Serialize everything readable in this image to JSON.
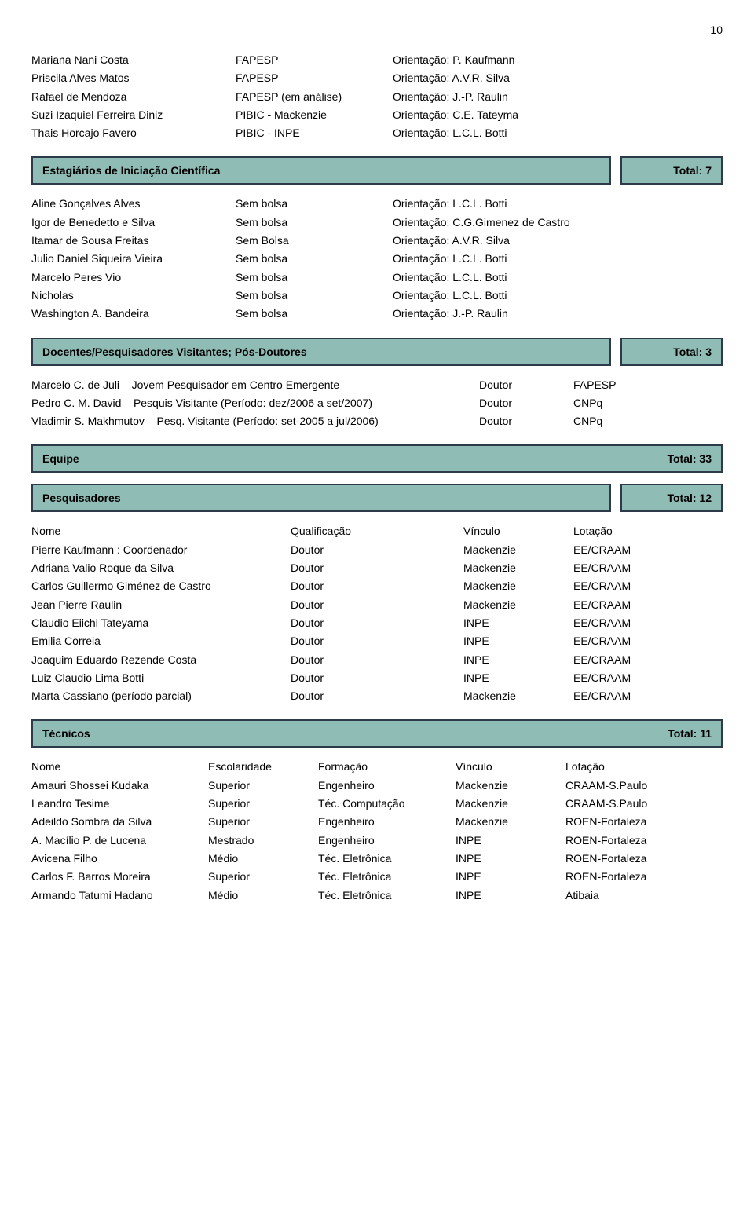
{
  "page_number": "10",
  "colors": {
    "banner_bg": "#8fbcb4",
    "banner_border": "#2d3a4a"
  },
  "section1_rows": [
    [
      "Mariana Nani Costa",
      "FAPESP",
      "Orientação:  P. Kaufmann"
    ],
    [
      "Priscila Alves Matos",
      "FAPESP",
      "Orientação: A.V.R. Silva"
    ],
    [
      "Rafael de Mendoza",
      "FAPESP (em análise)",
      "Orientação:  J.-P. Raulin"
    ],
    [
      "Suzi Izaquiel Ferreira Diniz",
      "PIBIC - Mackenzie",
      "Orientação: C.E. Tateyma"
    ],
    [
      "Thais Horcajo Favero",
      "PIBIC - INPE",
      "Orientação: L.C.L. Botti"
    ]
  ],
  "banner_estagiarios": {
    "title": "Estagiários de Iniciação Científica",
    "total": "Total: 7"
  },
  "estagiarios_rows": [
    [
      "Aline Gonçalves Alves",
      "Sem bolsa",
      "Orientação: L.C.L. Botti"
    ],
    [
      "Igor de Benedetto e Silva",
      "Sem bolsa",
      "Orientação: C.G.Gimenez de Castro"
    ],
    [
      "Itamar de Sousa Freitas",
      "Sem Bolsa",
      "Orientação: A.V.R. Silva"
    ],
    [
      "Julio Daniel Siqueira Vieira",
      "Sem bolsa",
      "Orientação: L.C.L. Botti"
    ],
    [
      "Marcelo Peres Vio",
      "Sem bolsa",
      "Orientação: L.C.L. Botti"
    ],
    [
      "Nicholas",
      "Sem bolsa",
      "Orientação: L.C.L. Botti"
    ],
    [
      "Washington A. Bandeira",
      "Sem bolsa",
      "Orientação: J.-P. Raulin"
    ]
  ],
  "banner_docentes": {
    "title": "Docentes/Pesquisadores Visitantes; Pós-Doutores",
    "total": "Total:  3"
  },
  "docentes_rows": [
    [
      "Marcelo C. de Juli – Jovem Pesquisador em Centro Emergente",
      "Doutor",
      "FAPESP"
    ],
    [
      "Pedro C. M. David – Pesquis Visitante    (Período: dez/2006 a set/2007)",
      "Doutor",
      "CNPq"
    ],
    [
      "Vladimir S. Makhmutov – Pesq. Visitante (Período: set-2005 a jul/2006)",
      "Doutor",
      "CNPq"
    ]
  ],
  "banner_equipe": {
    "title": "Equipe",
    "total": "Total: 33"
  },
  "banner_pesquisadores": {
    "title": "Pesquisadores",
    "total": "Total: 12"
  },
  "pesq_header": [
    "Nome",
    "Qualificação",
    "Vínculo",
    "Lotação"
  ],
  "pesq_rows": [
    [
      "Pierre Kaufmann : Coordenador",
      "Doutor",
      "Mackenzie",
      "EE/CRAAM"
    ],
    [
      "Adriana Valio Roque da Silva",
      "Doutor",
      "Mackenzie",
      "EE/CRAAM"
    ],
    [
      "Carlos Guillermo Giménez de Castro",
      "Doutor",
      "Mackenzie",
      "EE/CRAAM"
    ],
    [
      "Jean Pierre Raulin",
      "Doutor",
      "Mackenzie",
      "EE/CRAAM"
    ],
    [
      "Claudio Eiichi Tateyama",
      "Doutor",
      "INPE",
      "EE/CRAAM"
    ],
    [
      "Emilia Correia",
      "Doutor",
      "INPE",
      "EE/CRAAM"
    ],
    [
      "Joaquim Eduardo Rezende Costa",
      "Doutor",
      "INPE",
      "EE/CRAAM"
    ],
    [
      "Luiz Claudio Lima Botti",
      "Doutor",
      "INPE",
      "EE/CRAAM"
    ],
    [
      "Marta Cassiano (período parcial)",
      "Doutor",
      "Mackenzie",
      "EE/CRAAM"
    ]
  ],
  "banner_tecnicos": {
    "title": "Técnicos",
    "total": "Total: 11"
  },
  "tec_header": [
    "Nome",
    "Escolaridade",
    "Formação",
    "Vínculo",
    "Lotação"
  ],
  "tec_rows": [
    [
      "Amauri Shossei Kudaka",
      "Superior",
      "Engenheiro",
      "Mackenzie",
      "CRAAM-S.Paulo"
    ],
    [
      "Leandro Tesime",
      "Superior",
      "Téc. Computação",
      "Mackenzie",
      "CRAAM-S.Paulo"
    ],
    [
      "Adeildo Sombra da Silva",
      "Superior",
      "Engenheiro",
      "Mackenzie",
      "ROEN-Fortaleza"
    ],
    [
      "A. Macílio P. de Lucena",
      "Mestrado",
      "Engenheiro",
      "INPE",
      "ROEN-Fortaleza"
    ],
    [
      "Avicena Filho",
      "Médio",
      "Téc. Eletrônica",
      "INPE",
      "ROEN-Fortaleza"
    ],
    [
      "Carlos F. Barros Moreira",
      "Superior",
      "Téc. Eletrônica",
      "INPE",
      "ROEN-Fortaleza"
    ],
    [
      "Armando Tatumi Hadano",
      "Médio",
      "Téc. Eletrônica",
      "INPE",
      "Atibaia"
    ]
  ]
}
